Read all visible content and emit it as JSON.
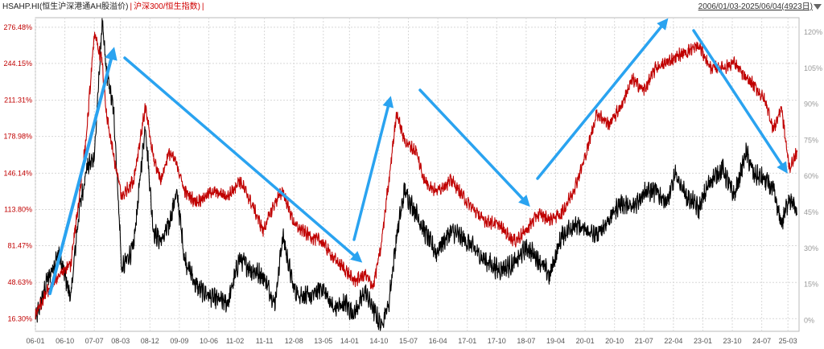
{
  "header": {
    "title_black": "HSAHP.HI(恒生沪深港通AH股溢价)",
    "separator": "|",
    "title_red": "沪深300/恒生指数)",
    "separator2": "|",
    "range": "2006/01/03-2025/06/04(4923日)"
  },
  "colors": {
    "hsahp": "#000000",
    "hs300_hsi": "#c00000",
    "arrow": "#2aa3f0",
    "grid": "#d8d8d8"
  },
  "icons": {
    "dropdown": "triangle-down-icon"
  },
  "chart_data": {
    "type": "line",
    "x_tick_labels": [
      "06-01",
      "06-10",
      "07-07",
      "08-03",
      "08-12",
      "09-09",
      "10-06",
      "11-02",
      "11-11",
      "12-08",
      "13-05",
      "14-01",
      "14-10",
      "15-07",
      "16-04",
      "17-01",
      "17-10",
      "18-07",
      "19-04",
      "20-01",
      "20-10",
      "21-07",
      "22-04",
      "23-01",
      "23-10",
      "24-07",
      "25-03"
    ],
    "left_axis": {
      "ticks": [
        "276.48%",
        "244.15%",
        "211.31%",
        "178.98%",
        "146.14%",
        "113.80%",
        "81.47%",
        "48.63%",
        "16.30%"
      ],
      "ylim": [
        5,
        285
      ]
    },
    "right_axis": {
      "ticks": [
        "120%",
        "105%",
        "90%",
        "75%",
        "60%",
        "45%",
        "30%",
        "15%",
        "0%"
      ],
      "ylim": [
        -4.5,
        126
      ]
    },
    "grid": true,
    "series": [
      {
        "name": "HSAHP.HI(恒生沪深港通AH股溢价)",
        "axis": "left",
        "color": "#000000",
        "x": [
          2006.0,
          2006.3,
          2006.6,
          2006.9,
          2007.1,
          2007.3,
          2007.5,
          2007.7,
          2007.8,
          2008.0,
          2008.2,
          2008.5,
          2008.8,
          2009.0,
          2009.2,
          2009.4,
          2009.6,
          2009.8,
          2010.1,
          2010.5,
          2010.9,
          2011.2,
          2011.5,
          2011.8,
          2012.1,
          2012.3,
          2012.6,
          2013.0,
          2013.3,
          2013.6,
          2013.9,
          2014.1,
          2014.4,
          2014.6,
          2014.8,
          2015.0,
          2015.2,
          2015.4,
          2015.7,
          2015.9,
          2016.2,
          2016.6,
          2017.0,
          2017.4,
          2017.8,
          2018.2,
          2018.5,
          2018.8,
          2019.1,
          2019.4,
          2019.7,
          2020.0,
          2020.3,
          2020.6,
          2020.9,
          2021.2,
          2021.5,
          2021.8,
          2022.1,
          2022.3,
          2022.6,
          2022.9,
          2023.2,
          2023.5,
          2023.8,
          2024.1,
          2024.3,
          2024.6,
          2024.8,
          2025.0,
          2025.2,
          2025.4
        ],
        "y": [
          15,
          50,
          75,
          35,
          110,
          150,
          160,
          280,
          240,
          200,
          60,
          80,
          190,
          95,
          85,
          100,
          130,
          70,
          45,
          35,
          30,
          70,
          60,
          55,
          30,
          90,
          40,
          35,
          45,
          25,
          30,
          20,
          40,
          25,
          10,
          30,
          90,
          130,
          110,
          95,
          75,
          95,
          85,
          70,
          60,
          65,
          80,
          70,
          55,
          90,
          100,
          95,
          90,
          105,
          120,
          115,
          130,
          130,
          120,
          145,
          125,
          115,
          140,
          150,
          125,
          165,
          145,
          140,
          130,
          100,
          125,
          110
        ]
      },
      {
        "name": "沪深300/恒生指数)",
        "axis": "left",
        "color": "#c00000",
        "x": [
          2006.0,
          2006.3,
          2006.6,
          2006.9,
          2007.1,
          2007.3,
          2007.5,
          2007.7,
          2007.8,
          2008.0,
          2008.2,
          2008.5,
          2008.8,
          2009.0,
          2009.2,
          2009.4,
          2009.6,
          2009.8,
          2010.1,
          2010.5,
          2010.9,
          2011.2,
          2011.5,
          2011.8,
          2012.1,
          2012.3,
          2012.6,
          2013.0,
          2013.3,
          2013.6,
          2013.9,
          2014.1,
          2014.4,
          2014.6,
          2014.8,
          2015.0,
          2015.2,
          2015.4,
          2015.7,
          2015.9,
          2016.2,
          2016.6,
          2017.0,
          2017.4,
          2017.8,
          2018.2,
          2018.5,
          2018.8,
          2019.1,
          2019.4,
          2019.7,
          2020.0,
          2020.3,
          2020.6,
          2020.9,
          2021.2,
          2021.5,
          2021.8,
          2022.1,
          2022.3,
          2022.6,
          2022.9,
          2023.2,
          2023.5,
          2023.8,
          2024.1,
          2024.3,
          2024.6,
          2024.8,
          2025.0,
          2025.2,
          2025.4
        ],
        "y": [
          20,
          40,
          55,
          65,
          120,
          180,
          270,
          245,
          200,
          160,
          125,
          140,
          205,
          160,
          140,
          165,
          155,
          130,
          120,
          130,
          125,
          140,
          120,
          95,
          120,
          130,
          100,
          90,
          85,
          70,
          60,
          50,
          55,
          45,
          80,
          140,
          200,
          175,
          165,
          140,
          130,
          140,
          120,
          105,
          100,
          85,
          95,
          110,
          105,
          110,
          130,
          160,
          200,
          190,
          205,
          230,
          220,
          240,
          245,
          250,
          255,
          260,
          240,
          240,
          245,
          230,
          225,
          210,
          185,
          205,
          150,
          165
        ]
      }
    ]
  }
}
